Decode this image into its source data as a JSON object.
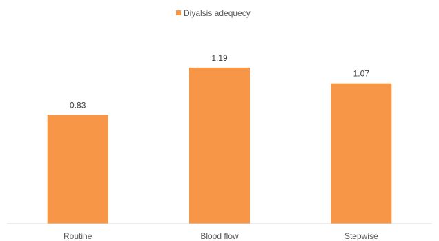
{
  "chart_data": {
    "type": "bar",
    "categories": [
      "Routine",
      "Blood flow",
      "Stepwise"
    ],
    "series": [
      {
        "name": "Diyalsis adequecy",
        "values": [
          0.83,
          1.19,
          1.07
        ],
        "color": "#F79646"
      }
    ],
    "data_labels": [
      "0.83",
      "1.19",
      "1.07"
    ],
    "ylim": [
      0,
      1.4
    ],
    "grid": false,
    "legend": "top-center",
    "axis_color": "#D9D9D9"
  }
}
